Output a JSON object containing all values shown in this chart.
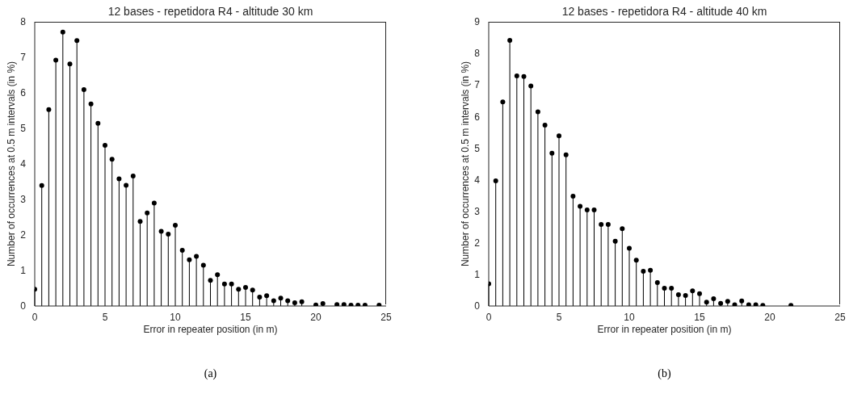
{
  "chart_data": [
    {
      "type": "lollipop",
      "title": "12 bases - repetidora R4 - altitude 30 km",
      "xlabel": "Error in repeater position (in m)",
      "ylabel": "Number of occurrences at 0.5 m intervals (in %)",
      "annotations": [
        "(a)"
      ],
      "x": [
        0,
        0.5,
        1,
        1.5,
        2,
        2.5,
        3,
        3.5,
        4,
        4.5,
        5,
        5.5,
        6,
        6.5,
        7,
        7.5,
        8,
        8.5,
        9,
        9.5,
        10,
        10.5,
        11,
        11.5,
        12,
        12.5,
        13,
        13.5,
        14,
        14.5,
        15,
        15.5,
        16,
        16.5,
        17,
        17.5,
        18,
        18.5,
        19,
        19.5,
        20,
        20.5,
        21,
        21.5,
        22,
        22.5,
        23,
        23.5,
        24,
        24.5
      ],
      "values": [
        0.47,
        3.39,
        5.53,
        6.92,
        7.71,
        6.81,
        7.47,
        6.09,
        5.69,
        5.14,
        4.52,
        4.13,
        3.58,
        3.4,
        3.66,
        2.38,
        2.62,
        2.9,
        2.1,
        2.02,
        2.27,
        1.57,
        1.3,
        1.4,
        1.15,
        0.72,
        0.88,
        0.62,
        0.62,
        0.47,
        0.52,
        0.45,
        0.25,
        0.29,
        0.15,
        0.22,
        0.15,
        0.09,
        0.12,
        null,
        0.03,
        0.07,
        null,
        0.04,
        0.04,
        0.02,
        0.02,
        0.02,
        null,
        0.02
      ],
      "color": "#000000",
      "marker": "circle",
      "grid": false,
      "xlim": [
        0,
        25
      ],
      "xticks": [
        0,
        5,
        10,
        15,
        20,
        25
      ],
      "ylim": [
        0,
        8
      ],
      "yticks": [
        0,
        1,
        2,
        3,
        4,
        5,
        6,
        7,
        8
      ]
    },
    {
      "type": "lollipop",
      "title": "12 bases - repetidora R4 - altitude 40 km",
      "xlabel": "Error in repeater position (in m)",
      "ylabel": "Number of occurrences at 0.5 m intervals (in %)",
      "annotations": [
        "(b)"
      ],
      "x": [
        0,
        0.5,
        1,
        1.5,
        2,
        2.5,
        3,
        3.5,
        4,
        4.5,
        5,
        5.5,
        6,
        6.5,
        7,
        7.5,
        8,
        8.5,
        9,
        9.5,
        10,
        10.5,
        11,
        11.5,
        12,
        12.5,
        13,
        13.5,
        14,
        14.5,
        15,
        15.5,
        16,
        16.5,
        17,
        17.5,
        18,
        18.5,
        19,
        19.5,
        20,
        20.5,
        21,
        21.5
      ],
      "values": [
        0.7,
        3.96,
        6.46,
        8.41,
        7.29,
        7.27,
        6.97,
        6.15,
        5.73,
        4.84,
        5.39,
        4.79,
        3.48,
        3.16,
        3.04,
        3.04,
        2.58,
        2.58,
        2.05,
        2.45,
        1.83,
        1.45,
        1.1,
        1.13,
        0.74,
        0.56,
        0.56,
        0.36,
        0.33,
        0.48,
        0.39,
        0.12,
        0.23,
        0.08,
        0.15,
        0.04,
        0.16,
        0.04,
        0.04,
        0.02,
        null,
        null,
        null,
        0.02
      ],
      "color": "#000000",
      "marker": "circle",
      "grid": false,
      "xlim": [
        0,
        25
      ],
      "xticks": [
        0,
        5,
        10,
        15,
        20,
        25
      ],
      "ylim": [
        0,
        9
      ],
      "yticks": [
        0,
        1,
        2,
        3,
        4,
        5,
        6,
        7,
        8,
        9
      ]
    }
  ]
}
